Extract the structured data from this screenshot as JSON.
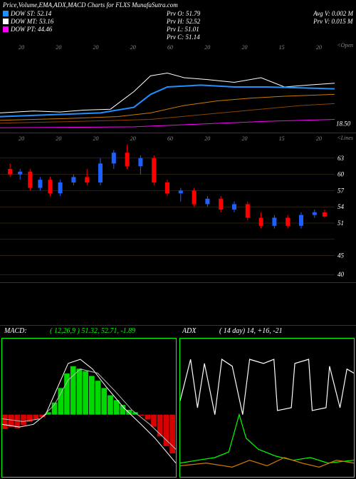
{
  "title": "Price,Volume,EMA,ADX,MACD Charts for FLXS MunafaSutra.com",
  "legend": {
    "st": {
      "label": "DOW ST: 52.14",
      "color": "#1e90ff"
    },
    "mt": {
      "label": "DOW MT: 53.16",
      "color": "#ffffff"
    },
    "pt": {
      "label": "DOW PT: 44.46",
      "color": "#ff00ff"
    }
  },
  "prev": {
    "o": "Prv O: 51.79",
    "h": "Prv H: 52.52",
    "l": "Prv L: 51.01",
    "c": "Prv C: 51.14"
  },
  "avg": {
    "v": "Avg V: 0.002  M",
    "pv": "Prv V: 0.015 M"
  },
  "price_panel": {
    "label_right": "<Open",
    "y_marker": {
      "value": "18.50",
      "y_frac": 0.92
    },
    "x_ticks": [
      "20",
      "20",
      "20",
      "20",
      "60",
      "20",
      "20",
      "15",
      "20"
    ],
    "lines": {
      "white": {
        "color": "#ffffff",
        "pts": [
          [
            0,
            0.78
          ],
          [
            0.1,
            0.76
          ],
          [
            0.18,
            0.77
          ],
          [
            0.25,
            0.75
          ],
          [
            0.33,
            0.74
          ],
          [
            0.4,
            0.55
          ],
          [
            0.45,
            0.38
          ],
          [
            0.5,
            0.35
          ],
          [
            0.55,
            0.4
          ],
          [
            0.62,
            0.42
          ],
          [
            0.7,
            0.45
          ],
          [
            0.78,
            0.4
          ],
          [
            0.85,
            0.5
          ],
          [
            0.92,
            0.48
          ],
          [
            1.0,
            0.46
          ]
        ]
      },
      "blue": {
        "color": "#1e90ff",
        "width": 2,
        "pts": [
          [
            0,
            0.82
          ],
          [
            0.15,
            0.8
          ],
          [
            0.3,
            0.78
          ],
          [
            0.4,
            0.72
          ],
          [
            0.45,
            0.58
          ],
          [
            0.5,
            0.5
          ],
          [
            0.6,
            0.48
          ],
          [
            0.7,
            0.5
          ],
          [
            0.8,
            0.5
          ],
          [
            0.9,
            0.51
          ],
          [
            1.0,
            0.52
          ]
        ]
      },
      "orange": {
        "color": "#cc7a00",
        "pts": [
          [
            0,
            0.86
          ],
          [
            0.2,
            0.84
          ],
          [
            0.35,
            0.82
          ],
          [
            0.45,
            0.78
          ],
          [
            0.55,
            0.7
          ],
          [
            0.65,
            0.65
          ],
          [
            0.75,
            0.62
          ],
          [
            0.85,
            0.6
          ],
          [
            1.0,
            0.58
          ]
        ]
      },
      "dorange": {
        "color": "#8a4500",
        "pts": [
          [
            0,
            0.89
          ],
          [
            0.25,
            0.87
          ],
          [
            0.45,
            0.85
          ],
          [
            0.6,
            0.8
          ],
          [
            0.75,
            0.75
          ],
          [
            0.9,
            0.7
          ],
          [
            1.0,
            0.68
          ]
        ]
      },
      "magenta": {
        "color": "#ff00ff",
        "pts": [
          [
            0,
            0.94
          ],
          [
            0.2,
            0.935
          ],
          [
            0.4,
            0.93
          ],
          [
            0.6,
            0.9
          ],
          [
            0.8,
            0.87
          ],
          [
            1.0,
            0.85
          ]
        ]
      }
    }
  },
  "candle_panel": {
    "label_right": "<Lines",
    "x_ticks": [
      "20",
      "20",
      "20",
      "20",
      "60",
      "20",
      "20",
      "15",
      "20"
    ],
    "y_grid": [
      {
        "v": "63",
        "f": 0.12
      },
      {
        "v": "60",
        "f": 0.24
      },
      {
        "v": "57",
        "f": 0.36
      },
      {
        "v": "54",
        "f": 0.48
      },
      {
        "v": "51",
        "f": 0.6
      },
      {
        "v": "",
        "f": 0.72
      },
      {
        "v": "45",
        "f": 0.84
      },
      {
        "v": "40",
        "f": 0.98
      }
    ],
    "y_min": 40,
    "y_max": 65,
    "candles": [
      {
        "x": 0.03,
        "o": 60,
        "h": 61,
        "l": 58.5,
        "c": 59,
        "up": false
      },
      {
        "x": 0.06,
        "o": 59,
        "h": 60,
        "l": 58,
        "c": 59.5,
        "up": true
      },
      {
        "x": 0.09,
        "o": 59.5,
        "h": 60,
        "l": 56,
        "c": 56.5,
        "up": false
      },
      {
        "x": 0.12,
        "o": 56.5,
        "h": 58.5,
        "l": 56,
        "c": 58,
        "up": true
      },
      {
        "x": 0.15,
        "o": 58,
        "h": 58.5,
        "l": 55,
        "c": 55.5,
        "up": false
      },
      {
        "x": 0.18,
        "o": 55.5,
        "h": 58,
        "l": 55,
        "c": 57.5,
        "up": true
      },
      {
        "x": 0.22,
        "o": 57.5,
        "h": 59,
        "l": 57,
        "c": 58.5,
        "up": true
      },
      {
        "x": 0.26,
        "o": 58.5,
        "h": 60,
        "l": 57,
        "c": 57.5,
        "up": false
      },
      {
        "x": 0.3,
        "o": 57.5,
        "h": 62,
        "l": 57,
        "c": 61,
        "up": true
      },
      {
        "x": 0.34,
        "o": 61,
        "h": 63.5,
        "l": 60,
        "c": 63,
        "up": true
      },
      {
        "x": 0.38,
        "o": 63,
        "h": 64.5,
        "l": 60,
        "c": 60.5,
        "up": false
      },
      {
        "x": 0.42,
        "o": 60.5,
        "h": 62.5,
        "l": 59,
        "c": 62,
        "up": true
      },
      {
        "x": 0.46,
        "o": 62,
        "h": 62.5,
        "l": 57,
        "c": 57.5,
        "up": false
      },
      {
        "x": 0.5,
        "o": 57.5,
        "h": 58,
        "l": 55,
        "c": 55.5,
        "up": false
      },
      {
        "x": 0.54,
        "o": 55.5,
        "h": 56.5,
        "l": 54,
        "c": 56,
        "up": true
      },
      {
        "x": 0.58,
        "o": 56,
        "h": 56.5,
        "l": 53,
        "c": 53.5,
        "up": false
      },
      {
        "x": 0.62,
        "o": 53.5,
        "h": 55,
        "l": 53,
        "c": 54.5,
        "up": true
      },
      {
        "x": 0.66,
        "o": 54.5,
        "h": 55,
        "l": 52,
        "c": 52.5,
        "up": false
      },
      {
        "x": 0.7,
        "o": 52.5,
        "h": 54,
        "l": 52,
        "c": 53.5,
        "up": true
      },
      {
        "x": 0.74,
        "o": 53.5,
        "h": 54,
        "l": 50.5,
        "c": 51,
        "up": false
      },
      {
        "x": 0.78,
        "o": 51,
        "h": 52,
        "l": 49,
        "c": 49.5,
        "up": false
      },
      {
        "x": 0.82,
        "o": 49.5,
        "h": 51.5,
        "l": 49,
        "c": 51,
        "up": true
      },
      {
        "x": 0.86,
        "o": 51,
        "h": 51.5,
        "l": 49,
        "c": 49.5,
        "up": false
      },
      {
        "x": 0.9,
        "o": 49.5,
        "h": 52,
        "l": 49,
        "c": 51.5,
        "up": true
      },
      {
        "x": 0.94,
        "o": 51.5,
        "h": 52.5,
        "l": 51,
        "c": 52,
        "up": true
      },
      {
        "x": 0.97,
        "o": 52,
        "h": 52.5,
        "l": 51,
        "c": 51.2,
        "up": false
      }
    ],
    "colors": {
      "up": "#1e60ff",
      "down": "#ff0000"
    }
  },
  "macd": {
    "title": "MACD:",
    "params": "( 12,26,9 ) 51.32, 52.71, -1.89",
    "title_color": "#ffffff",
    "params_color": "#00ff00",
    "hist": [
      -0.3,
      -0.25,
      -0.28,
      -0.22,
      -0.15,
      -0.1,
      -0.05,
      0.05,
      0.25,
      0.55,
      0.85,
      1.0,
      0.95,
      0.9,
      0.8,
      0.7,
      0.55,
      0.4,
      0.3,
      0.2,
      0.1,
      0.05,
      -0.02,
      -0.1,
      -0.25,
      -0.45,
      -0.65,
      -0.8
    ],
    "hist_pos_color": "#00ff00",
    "hist_neg_color": "#ff0000",
    "line1": {
      "color": "#ffffff",
      "pts": [
        [
          0,
          0.62
        ],
        [
          0.1,
          0.64
        ],
        [
          0.18,
          0.62
        ],
        [
          0.25,
          0.55
        ],
        [
          0.32,
          0.35
        ],
        [
          0.38,
          0.18
        ],
        [
          0.45,
          0.15
        ],
        [
          0.52,
          0.22
        ],
        [
          0.6,
          0.35
        ],
        [
          0.7,
          0.5
        ],
        [
          0.8,
          0.62
        ],
        [
          0.88,
          0.72
        ],
        [
          1.0,
          0.9
        ]
      ]
    },
    "line2": {
      "color": "#bbbbbb",
      "pts": [
        [
          0,
          0.58
        ],
        [
          0.12,
          0.6
        ],
        [
          0.22,
          0.58
        ],
        [
          0.3,
          0.48
        ],
        [
          0.38,
          0.3
        ],
        [
          0.45,
          0.22
        ],
        [
          0.55,
          0.25
        ],
        [
          0.65,
          0.38
        ],
        [
          0.75,
          0.52
        ],
        [
          0.85,
          0.62
        ],
        [
          1.0,
          0.8
        ]
      ]
    }
  },
  "adx": {
    "title": "ADX",
    "params": "( 14  day) 14, +16, -21",
    "line_white": {
      "color": "#ffffff",
      "pts": [
        [
          0,
          0.45
        ],
        [
          0.06,
          0.15
        ],
        [
          0.1,
          0.5
        ],
        [
          0.14,
          0.18
        ],
        [
          0.2,
          0.55
        ],
        [
          0.24,
          0.15
        ],
        [
          0.3,
          0.2
        ],
        [
          0.36,
          0.55
        ],
        [
          0.4,
          0.15
        ],
        [
          0.48,
          0.18
        ],
        [
          0.54,
          0.15
        ],
        [
          0.56,
          0.52
        ],
        [
          0.64,
          0.5
        ],
        [
          0.66,
          0.18
        ],
        [
          0.74,
          0.15
        ],
        [
          0.76,
          0.52
        ],
        [
          0.84,
          0.5
        ],
        [
          0.86,
          0.2
        ],
        [
          0.92,
          0.5
        ],
        [
          0.96,
          0.22
        ],
        [
          1.0,
          0.25
        ]
      ]
    },
    "line_green": {
      "color": "#00ff00",
      "pts": [
        [
          0,
          0.9
        ],
        [
          0.1,
          0.88
        ],
        [
          0.2,
          0.86
        ],
        [
          0.28,
          0.82
        ],
        [
          0.34,
          0.55
        ],
        [
          0.38,
          0.72
        ],
        [
          0.45,
          0.8
        ],
        [
          0.55,
          0.85
        ],
        [
          0.65,
          0.88
        ],
        [
          0.75,
          0.86
        ],
        [
          0.85,
          0.9
        ],
        [
          1.0,
          0.88
        ]
      ]
    },
    "line_orange": {
      "color": "#cc7a00",
      "pts": [
        [
          0,
          0.92
        ],
        [
          0.15,
          0.9
        ],
        [
          0.3,
          0.93
        ],
        [
          0.4,
          0.88
        ],
        [
          0.5,
          0.92
        ],
        [
          0.6,
          0.86
        ],
        [
          0.7,
          0.9
        ],
        [
          0.8,
          0.93
        ],
        [
          0.9,
          0.88
        ],
        [
          1.0,
          0.9
        ]
      ]
    }
  }
}
